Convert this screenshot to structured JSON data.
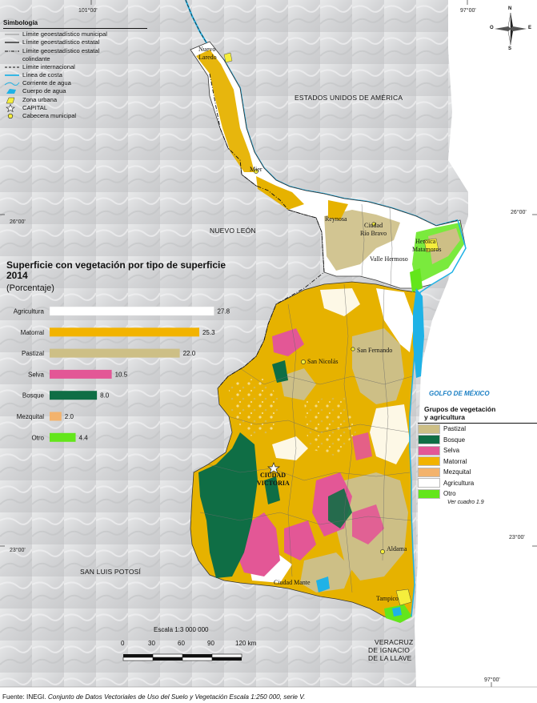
{
  "map": {
    "coordinates": {
      "top_left": "101°00'",
      "top_right": "97°00'",
      "bottom_right": "97°00'",
      "right_upper": "26°00'",
      "left_upper": "26°00'",
      "left_lower": "23°00'",
      "right_lower": "23°00'"
    },
    "regions": {
      "usa": "ESTADOS UNIDOS DE AMÉRICA",
      "nuevo_leon": "NUEVO LEÓN",
      "slp": "SAN LUIS POTOSÍ",
      "veracruz_1": "VERACRUZ",
      "veracruz_2": "DE IGNACIO",
      "veracruz_3": "DE LA LLAVE",
      "gulf": "GOLFO DE MÉXICO"
    },
    "cities": {
      "nuevo_laredo_1": "Nuevo",
      "nuevo_laredo_2": "Laredo",
      "mier": "Mier",
      "reynosa": "Reynosa",
      "rio_bravo_1": "Ciudad",
      "rio_bravo_2": "Río Bravo",
      "matamoros_1": "Heroica",
      "matamoros_2": "Matamoros",
      "valle_hermoso": "Valle Hermoso",
      "san_fernando": "San Fernando",
      "san_nicolas": "San Nicolás",
      "victoria_1": "CIUDAD",
      "victoria_2": "VICTORIA",
      "aldama": "Aldama",
      "mante": "Ciudad Mante",
      "tampico": "Tampico"
    },
    "compass": {
      "n": "N",
      "s": "S",
      "e": "E",
      "o": "O"
    }
  },
  "simbologia": {
    "title": "Simbología",
    "items": [
      "Límite geoestadístico  municipal",
      "Límite geoestadístico estatal",
      "Límite geoestadístico estatal",
      "colindante",
      "Límite internacional",
      "Línea de costa",
      "Corriente de agua",
      "Cuerpo de agua",
      "Zona urbana",
      "CAPITAL",
      "Cabecera municipal"
    ]
  },
  "chart": {
    "title_line1": "Superficie con vegetación por tipo de superficie",
    "title_line2": "2014",
    "subtitle": "(Porcentaje)"
  },
  "chart_data": {
    "type": "bar",
    "orientation": "horizontal",
    "title": "Superficie con vegetación por tipo de superficie 2014",
    "ylabel": "(Porcentaje)",
    "categories": [
      "Agricultura",
      "Matorral",
      "Pastizal",
      "Selva",
      "Bosque",
      "Mezquital",
      "Otro"
    ],
    "values": [
      27.8,
      25.3,
      22.0,
      10.5,
      8.0,
      2.0,
      4.4
    ],
    "value_labels": [
      "27.8",
      "25.3",
      "22.0",
      "10.5",
      "8.0",
      "2.0",
      "4.4"
    ],
    "colors": [
      "#ffffff",
      "#f2b300",
      "#cdbf86",
      "#e35796",
      "#0f6e45",
      "#f3b36d",
      "#63e61b"
    ],
    "xlim": [
      0,
      30
    ],
    "grid": false
  },
  "vegetation_legend": {
    "title_line1": "Grupos de vegetación",
    "title_line2": "y agricultura",
    "items": [
      {
        "label": "Pastizal",
        "color": "#cdbf86"
      },
      {
        "label": "Bosque",
        "color": "#0f6e45"
      },
      {
        "label": "Selva",
        "color": "#e35796"
      },
      {
        "label": "Matorral",
        "color": "#f2b300"
      },
      {
        "label": "Mezquital",
        "color": "#f3b36d"
      },
      {
        "label": "Agricultura",
        "color": "#ffffff"
      },
      {
        "label": "Otro",
        "color": "#63e61b"
      }
    ],
    "note": "Ver cuadro 1.9"
  },
  "scale": {
    "title": "Escala 1:3 000 000",
    "ticks": [
      "0",
      "30",
      "60",
      "90",
      "120 km"
    ]
  },
  "source": {
    "prefix": "Fuente: INEGI. ",
    "italic": "Conjunto de Datos Vectoriales de Uso del Suelo y Vegetación Escala 1:250 000, serie V."
  },
  "colors": {
    "water": "#1fb2e6",
    "urban": "#f5ee3c",
    "relief": "#d9dadc"
  }
}
